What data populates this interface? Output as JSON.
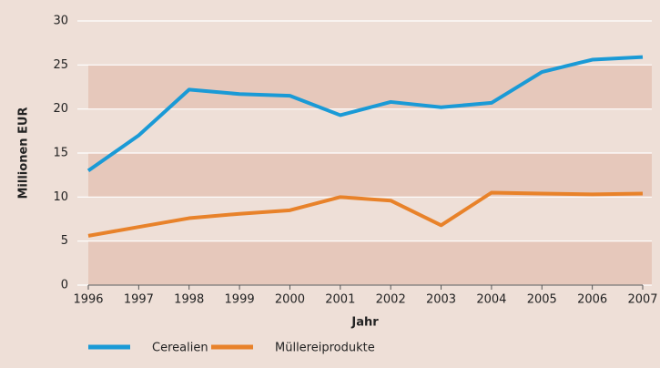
{
  "chart_data": {
    "type": "line",
    "x": [
      1996,
      1997,
      1998,
      1999,
      2000,
      2001,
      2002,
      2003,
      2004,
      2005,
      2006,
      2007
    ],
    "series": [
      {
        "name": "Cerealien",
        "color": "#1a9ad6",
        "values": [
          13,
          17,
          22.2,
          21.7,
          21.5,
          19.3,
          20.8,
          20.2,
          20.7,
          24.2,
          25.6,
          25.9
        ]
      },
      {
        "name": "Müllereiprodukte",
        "color": "#e8822a",
        "values": [
          5.6,
          6.6,
          7.6,
          8.1,
          8.5,
          10.0,
          9.6,
          6.8,
          10.5,
          10.4,
          10.3,
          10.4
        ]
      }
    ],
    "xlabel": "Jahr",
    "ylabel": "Millionen EUR",
    "xlim": [
      1996,
      2007
    ],
    "xticks": [
      1996,
      1997,
      1998,
      1999,
      2000,
      2001,
      2002,
      2003,
      2004,
      2005,
      2006,
      2007
    ],
    "ylim": [
      0,
      30
    ],
    "yticks": [
      0,
      5,
      10,
      15,
      20,
      25,
      30
    ],
    "grid": true,
    "bands": true,
    "legend": "bottom-left"
  }
}
